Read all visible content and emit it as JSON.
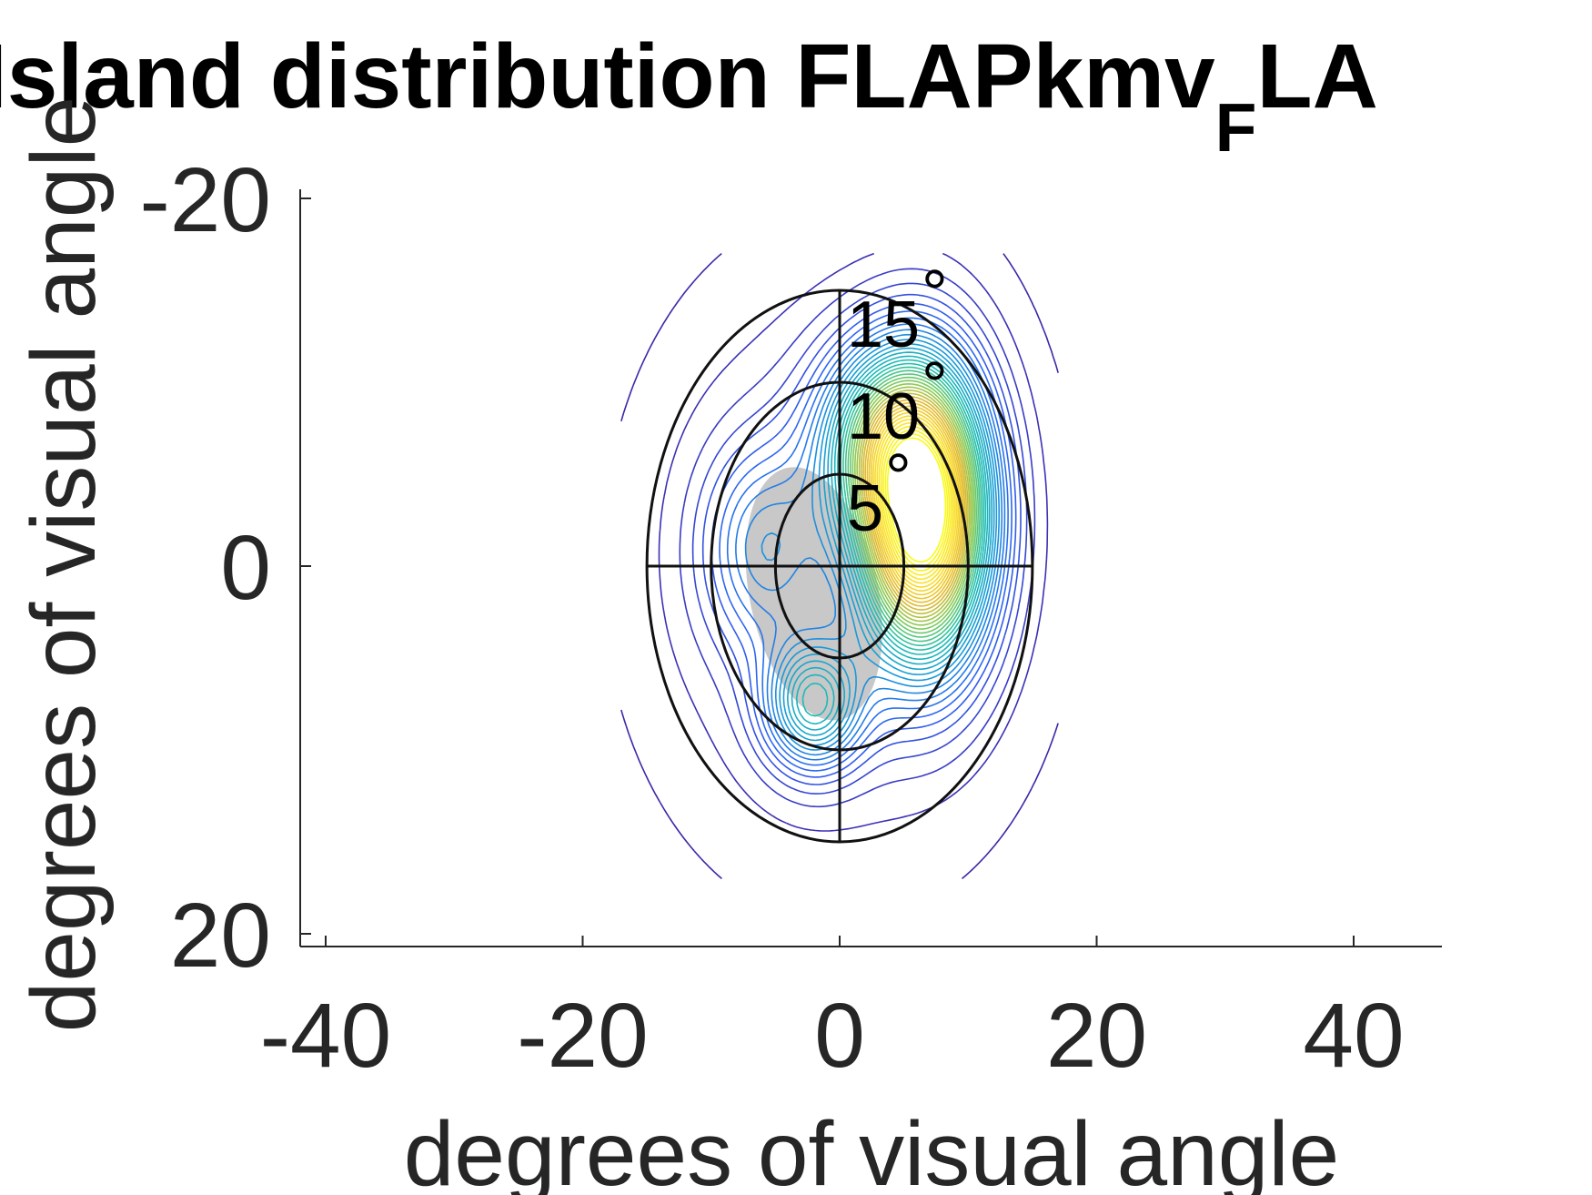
{
  "chart_data": {
    "type": "contour",
    "title": {
      "main": "Island distribution FLAPkmv",
      "subscript": "F",
      "suffix": "LA"
    },
    "xlabel": "degrees of visual angle",
    "ylabel": "degrees of visual angle",
    "xlim": [
      -40,
      40
    ],
    "ylim": [
      -20,
      20
    ],
    "y_reversed": true,
    "xticks": [
      -40,
      -20,
      0,
      20,
      40
    ],
    "xtick_labels": [
      "-40",
      "-20",
      "0",
      "20",
      "40"
    ],
    "yticks": [
      -20,
      0,
      20
    ],
    "ytick_labels": [
      "-20",
      "0",
      "20"
    ],
    "grid": false,
    "degree_rings": [
      {
        "radius": 5,
        "label": "5"
      },
      {
        "radius": 10,
        "label": "10"
      },
      {
        "radius": 15,
        "label": "15"
      }
    ],
    "degree_symbol": "°",
    "density_peaks": [
      {
        "x": 6.5,
        "y": -2.8,
        "sx": 3.4,
        "sy": 5.2,
        "amp": 1.0
      },
      {
        "x": 3.0,
        "y": -7.0,
        "sx": 3.5,
        "sy": 3.5,
        "amp": 0.3
      },
      {
        "x": -2.0,
        "y": 7.5,
        "sx": 2.6,
        "sy": 2.4,
        "amp": 0.35
      },
      {
        "x": -6.0,
        "y": -1.0,
        "sx": 3.2,
        "sy": 3.8,
        "amp": 0.18
      },
      {
        "x": 0.0,
        "y": 0.0,
        "sx": 9.0,
        "sy": 9.5,
        "amp": 0.1
      }
    ],
    "gray_region": {
      "cx": -2.0,
      "cy": 1.5,
      "rx": 5.0,
      "ry": 7.0,
      "color": "#c8c8c8"
    },
    "colormap": [
      "#3e26a8",
      "#2f63f3",
      "#179ad8",
      "#1ebfb1",
      "#80cb58",
      "#e2b82c",
      "#fbdd27",
      "#f9fb15"
    ]
  }
}
